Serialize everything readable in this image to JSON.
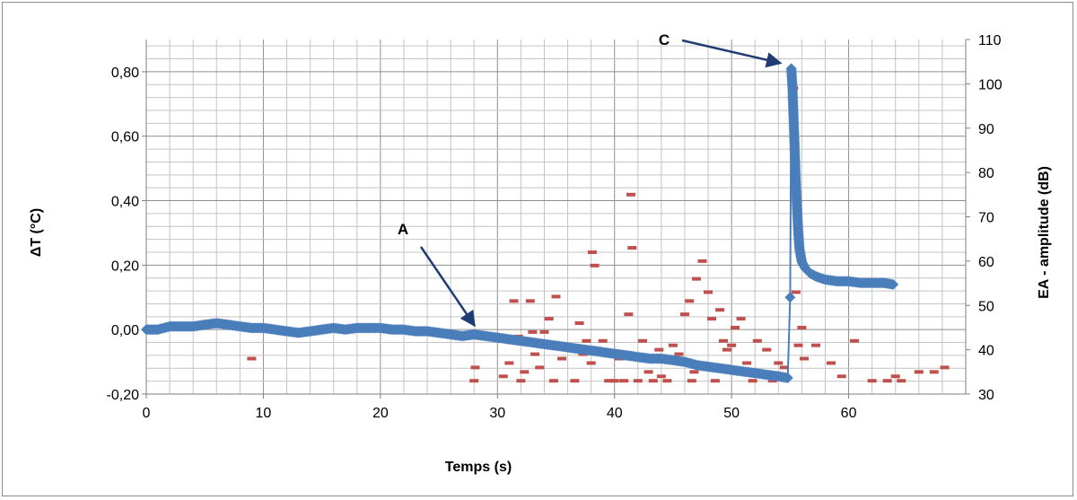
{
  "chart_data": {
    "type": "scatter",
    "title": "",
    "xlabel": "Temps (s)",
    "ylabel_left": "ΔT (°C)",
    "ylabel_right": "EA - amplitude (dB)",
    "xlim": [
      0,
      70
    ],
    "ylim_left": [
      -0.2,
      0.9
    ],
    "ylim_right": [
      30,
      110
    ],
    "x_ticks": [
      0,
      10,
      20,
      30,
      40,
      50,
      60
    ],
    "x_tick_labels": [
      "0",
      "10",
      "20",
      "30",
      "40",
      "50",
      "60"
    ],
    "y_left_ticks": [
      -0.2,
      0,
      0.2,
      0.4,
      0.6,
      0.8
    ],
    "y_left_tick_labels": [
      "-0,20",
      "0,00",
      "0,20",
      "0,40",
      "0,60",
      "0,80"
    ],
    "y_right_ticks": [
      30,
      40,
      50,
      60,
      70,
      80,
      90,
      100,
      110
    ],
    "y_right_tick_labels": [
      "30",
      "40",
      "50",
      "60",
      "70",
      "80",
      "90",
      "100",
      "110"
    ],
    "grid": true,
    "legend": "none",
    "series": [
      {
        "axis": "left",
        "color": "#4a7ebb",
        "marker": "diamond",
        "x": [
          0,
          1,
          2,
          3,
          4,
          5,
          6,
          7,
          8,
          9,
          10,
          11,
          12,
          13,
          14,
          15,
          16,
          17,
          18,
          19,
          20,
          21,
          22,
          23,
          24,
          25,
          26,
          27,
          28,
          29,
          30,
          31,
          32,
          33,
          34,
          35,
          36,
          37,
          38,
          39,
          40,
          41,
          42,
          43,
          44,
          45,
          46,
          47,
          48,
          49,
          50,
          51,
          52,
          53,
          54,
          54.8,
          55.0,
          55.1,
          55.2,
          55.3,
          55.4,
          55.5,
          55.6,
          55.7,
          55.8,
          56.0,
          56.3,
          56.7,
          57.2,
          58.0,
          59.0,
          60.0,
          61.0,
          62.0,
          63.0,
          63.8
        ],
        "y": [
          0.0,
          0.0,
          0.01,
          0.01,
          0.01,
          0.015,
          0.02,
          0.015,
          0.01,
          0.005,
          0.005,
          0.0,
          -0.005,
          -0.01,
          -0.005,
          0.0,
          0.005,
          0.0,
          0.005,
          0.005,
          0.005,
          0.0,
          0.0,
          -0.005,
          -0.005,
          -0.01,
          -0.015,
          -0.02,
          -0.015,
          -0.02,
          -0.025,
          -0.03,
          -0.035,
          -0.04,
          -0.045,
          -0.05,
          -0.055,
          -0.06,
          -0.065,
          -0.07,
          -0.075,
          -0.08,
          -0.085,
          -0.09,
          -0.09,
          -0.095,
          -0.1,
          -0.11,
          -0.115,
          -0.12,
          -0.125,
          -0.13,
          -0.135,
          -0.14,
          -0.145,
          -0.15,
          0.1,
          0.81,
          0.75,
          0.65,
          0.55,
          0.45,
          0.37,
          0.3,
          0.25,
          0.21,
          0.19,
          0.175,
          0.165,
          0.155,
          0.15,
          0.15,
          0.145,
          0.145,
          0.145,
          0.14
        ]
      },
      {
        "axis": "right",
        "color": "#c0504d",
        "marker": "dash",
        "x": [
          9.0,
          28.0,
          28.1,
          30.5,
          31.0,
          31.4,
          31.8,
          32.0,
          32.3,
          32.8,
          33.0,
          33.2,
          33.6,
          34.0,
          34.4,
          34.8,
          35.0,
          35.5,
          36.0,
          36.6,
          37.0,
          37.3,
          37.6,
          38.0,
          38.1,
          38.3,
          38.8,
          39.0,
          39.5,
          40.0,
          40.4,
          40.8,
          41.2,
          41.4,
          41.5,
          42.0,
          42.4,
          42.9,
          43.3,
          43.8,
          44.0,
          44.5,
          45.0,
          45.5,
          46.0,
          46.4,
          46.6,
          46.8,
          47.0,
          47.5,
          48.0,
          48.3,
          48.6,
          49.0,
          49.3,
          49.6,
          50.0,
          50.3,
          50.8,
          51.3,
          51.8,
          52.2,
          53.0,
          53.5,
          54.0,
          54.5,
          55.3,
          55.5,
          55.7,
          56.0,
          56.2,
          57.2,
          58.5,
          59.4,
          60.5,
          62.0,
          63.3,
          64.0,
          64.5,
          66.0,
          67.3,
          68.2
        ],
        "y": [
          38,
          33,
          36,
          34,
          37,
          51,
          43,
          33,
          35,
          51,
          44,
          39,
          36,
          44,
          47,
          33,
          52,
          38,
          41,
          33,
          46,
          39,
          42,
          37,
          62,
          59,
          40,
          42,
          33,
          33,
          38,
          33,
          48,
          75,
          63,
          33,
          42,
          35,
          33,
          40,
          34,
          33,
          41,
          39,
          48,
          51,
          33,
          35,
          56,
          60,
          53,
          47,
          33,
          49,
          42,
          40,
          41,
          45,
          47,
          37,
          33,
          42,
          40,
          33,
          37,
          36,
          99,
          53,
          41,
          45,
          38,
          41,
          37,
          34,
          42,
          33,
          33,
          34,
          33,
          35,
          35,
          36
        ]
      }
    ],
    "annotations": [
      {
        "label": "A",
        "points_to": [
          28.2,
          -0.01
        ]
      },
      {
        "label": "C",
        "points_to": [
          54.8,
          0.81
        ]
      }
    ]
  }
}
